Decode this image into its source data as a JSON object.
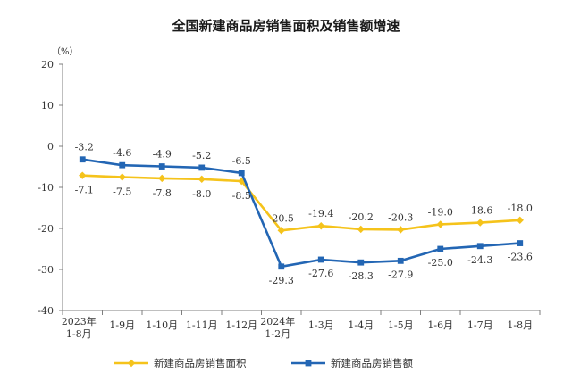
{
  "chart_data": {
    "type": "line",
    "title": "全国新建商品房销售面积及销售额增速",
    "unit_label": "（%）",
    "categories": [
      [
        "2023年",
        "1-8月"
      ],
      [
        "1-9月"
      ],
      [
        "1-10月"
      ],
      [
        "1-11月"
      ],
      [
        "1-12月"
      ],
      [
        "2024年",
        "1-2月"
      ],
      [
        "1-3月"
      ],
      [
        "1-4月"
      ],
      [
        "1-5月"
      ],
      [
        "1-6月"
      ],
      [
        "1-7月"
      ],
      [
        "1-8月"
      ]
    ],
    "ylim": [
      -40,
      20
    ],
    "yticks": [
      "20",
      "10",
      "0",
      "-10",
      "-20",
      "-30",
      "-40"
    ],
    "grid": false,
    "legend_position": "bottom",
    "series": [
      {
        "name": "新建商品房销售面积",
        "color": "#F5C31B",
        "marker": "diamond",
        "values": [
          -7.1,
          -7.5,
          -7.8,
          -8.0,
          -8.5,
          -20.5,
          -19.4,
          -20.2,
          -20.3,
          -19.0,
          -18.6,
          -18.0
        ],
        "labels": [
          "-7.1",
          "-7.5",
          "-7.8",
          "-8.0",
          "-8.5",
          "-20.5",
          "-19.4",
          "-20.2",
          "-20.3",
          "-19.0",
          "-18.6",
          "-18.0"
        ]
      },
      {
        "name": "新建商品房销售额",
        "color": "#2366B4",
        "marker": "square",
        "values": [
          -3.2,
          -4.6,
          -4.9,
          -5.2,
          -6.5,
          -29.3,
          -27.6,
          -28.3,
          -27.9,
          -25.0,
          -24.3,
          -23.6
        ],
        "labels": [
          "-3.2",
          "-4.6",
          "-4.9",
          "-5.2",
          "-6.5",
          "-29.3",
          "-27.6",
          "-28.3",
          "-27.9",
          "-25.0",
          "-24.3",
          "-23.6"
        ]
      }
    ]
  }
}
